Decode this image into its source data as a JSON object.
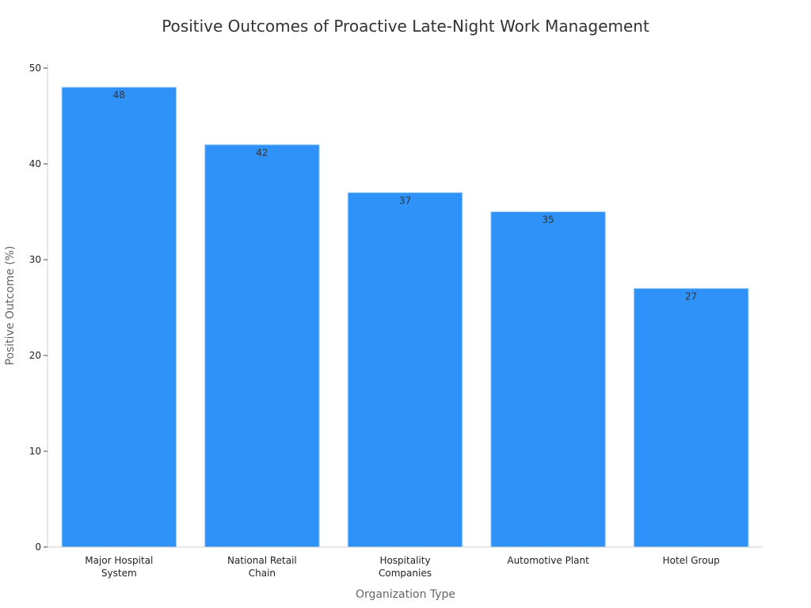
{
  "chart_data": {
    "type": "bar",
    "title": "Positive Outcomes of Proactive Late-Night Work Management",
    "xlabel": "Organization Type",
    "ylabel": "Positive Outcome (%)",
    "categories": [
      [
        "Major Hospital",
        "System"
      ],
      [
        "National Retail",
        "Chain"
      ],
      [
        "Hospitality",
        "Companies"
      ],
      [
        "Automotive Plant"
      ],
      [
        "Hotel Group"
      ]
    ],
    "values": [
      48,
      42,
      37,
      35,
      27
    ],
    "data_labels": [
      "48",
      "42",
      "37",
      "35",
      "27"
    ],
    "ylim": [
      0,
      50
    ],
    "yticks": [
      0,
      10,
      20,
      30,
      40,
      50
    ],
    "ytick_labels": [
      "0",
      "10",
      "20",
      "30",
      "40",
      "50"
    ],
    "grid": false,
    "bar_color": "#2f92f8",
    "bar_edge_color": "#a8d0fb"
  }
}
